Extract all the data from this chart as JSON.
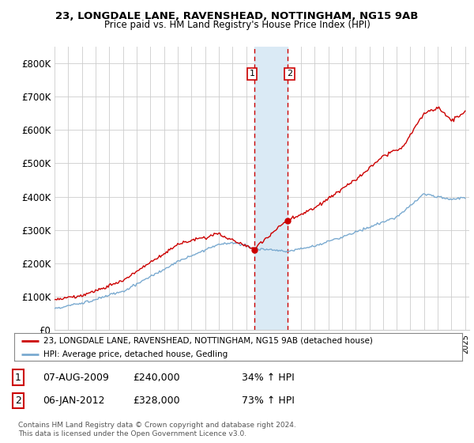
{
  "title_line1": "23, LONGDALE LANE, RAVENSHEAD, NOTTINGHAM, NG15 9AB",
  "title_line2": "Price paid vs. HM Land Registry's House Price Index (HPI)",
  "ylim": [
    0,
    850000
  ],
  "yticks": [
    0,
    100000,
    200000,
    300000,
    400000,
    500000,
    600000,
    700000,
    800000
  ],
  "ytick_labels": [
    "£0",
    "£100K",
    "£200K",
    "£300K",
    "£400K",
    "£500K",
    "£600K",
    "£700K",
    "£800K"
  ],
  "hpi_color": "#7aaad0",
  "price_color": "#cc0000",
  "sale1_date": 2009.58,
  "sale1_price": 240000,
  "sale2_date": 2012.02,
  "sale2_price": 328000,
  "highlight_color": "#daeaf5",
  "sale_vline_color": "#cc0000",
  "legend_line1": "23, LONGDALE LANE, RAVENSHEAD, NOTTINGHAM, NG15 9AB (detached house)",
  "legend_line2": "HPI: Average price, detached house, Gedling",
  "annotation1_label": "1",
  "annotation1_date": "07-AUG-2009",
  "annotation1_price": "£240,000",
  "annotation1_hpi": "34% ↑ HPI",
  "annotation2_label": "2",
  "annotation2_date": "06-JAN-2012",
  "annotation2_price": "£328,000",
  "annotation2_hpi": "73% ↑ HPI",
  "footnote": "Contains HM Land Registry data © Crown copyright and database right 2024.\nThis data is licensed under the Open Government Licence v3.0.",
  "background_color": "#ffffff",
  "grid_color": "#cccccc"
}
